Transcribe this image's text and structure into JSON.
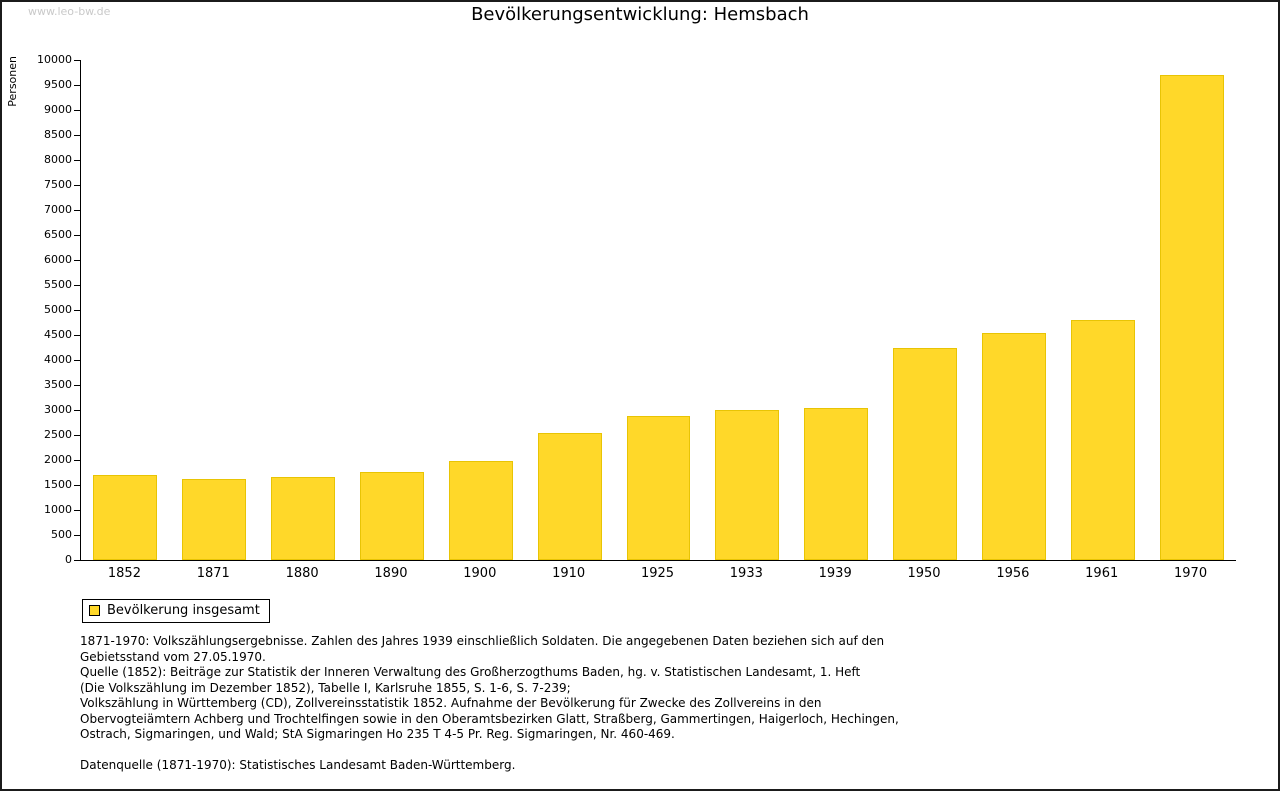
{
  "page": {
    "watermark": "www.leo-bw.de",
    "title": "Bevölkerungsentwicklung: Hemsbach"
  },
  "chart_data": {
    "type": "bar",
    "title": "Bevölkerungsentwicklung: Hemsbach",
    "xlabel": "",
    "ylabel": "Personen",
    "ylim": [
      0,
      10000
    ],
    "ytick_step": 500,
    "grid": false,
    "bar_color": "#FFD829",
    "categories": [
      "1852",
      "1871",
      "1880",
      "1890",
      "1900",
      "1910",
      "1925",
      "1933",
      "1939",
      "1950",
      "1956",
      "1961",
      "1970"
    ],
    "values": [
      1700,
      1620,
      1660,
      1770,
      1980,
      2540,
      2880,
      3010,
      3040,
      4250,
      4550,
      4800,
      9700
    ],
    "legend": [
      {
        "label": "Bevölkerung insgesamt",
        "color": "#FFD829"
      }
    ],
    "legend_position": "bottom-left"
  },
  "footnotes": {
    "lines": [
      "1871-1970: Volkszählungsergebnisse. Zahlen des Jahres 1939 einschließlich Soldaten. Die angegebenen Daten beziehen sich auf den",
      "Gebietsstand vom 27.05.1970.",
      "Quelle (1852): Beiträge zur Statistik der Inneren Verwaltung des Großherzogthums Baden, hg. v. Statistischen Landesamt, 1. Heft",
      "(Die Volkszählung im Dezember 1852), Tabelle I, Karlsruhe 1855, S. 1-6, S. 7-239;",
      "Volkszählung in Württemberg (CD), Zollvereinsstatistik 1852. Aufnahme der Bevölkerung für Zwecke des Zollvereins in den",
      "Obervogteiämtern Achberg und Trochtelfingen sowie in den Oberamtsbezirken Glatt, Straßberg, Gammertingen, Haigerloch, Hechingen,",
      "Ostrach, Sigmaringen, und Wald; StA Sigmaringen Ho 235 T 4-5 Pr. Reg. Sigmaringen, Nr. 460-469.",
      "",
      "Datenquelle (1871-1970): Statistisches Landesamt Baden-Württemberg."
    ]
  }
}
